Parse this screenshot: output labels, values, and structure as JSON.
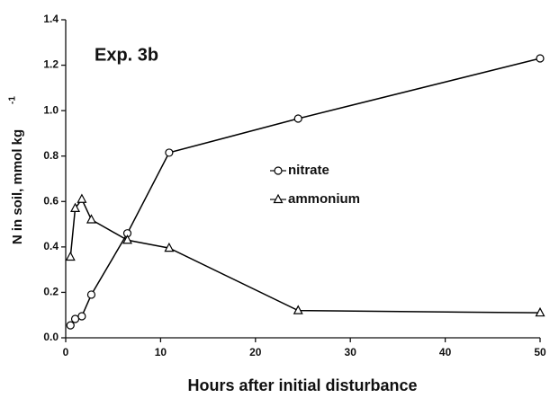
{
  "chart_data": {
    "type": "line",
    "annotation": "Exp. 3b",
    "x_label": "Hours after initial disturbance",
    "y_label": "N in soil, mmol kg",
    "y_label_superscript": "-1",
    "xlim": [
      0,
      50
    ],
    "xticks": [
      0,
      10,
      20,
      30,
      40,
      50
    ],
    "ylim": [
      0,
      1.4
    ],
    "yticks": [
      {
        "value": 0,
        "label": "0.0"
      },
      0.2,
      0.4,
      0.6,
      0.8,
      {
        "value": 1,
        "label": "1.0"
      },
      1.2,
      1.4
    ],
    "legend": "center",
    "series": [
      {
        "name": "nitrate",
        "color": "#000000",
        "marker": "circle",
        "x": [
          0.5,
          1,
          1.7,
          2.7,
          6.5,
          10.9,
          24.5,
          50
        ],
        "values": [
          0.055,
          0.083,
          0.095,
          0.19,
          0.46,
          0.815,
          0.965,
          1.23
        ]
      },
      {
        "name": "ammonium",
        "color": "#000000",
        "marker": "triangle",
        "x": [
          0.5,
          1,
          1.7,
          2.7,
          6.5,
          10.9,
          24.5,
          50
        ],
        "values": [
          0.356,
          0.57,
          0.61,
          0.52,
          0.43,
          0.395,
          0.12,
          0.11
        ]
      }
    ]
  }
}
